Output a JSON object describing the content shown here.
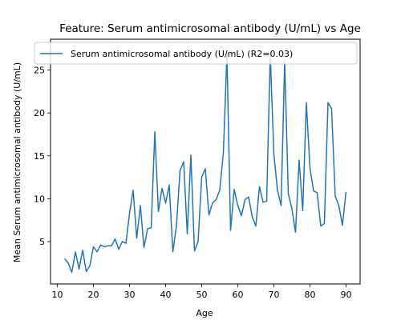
{
  "chart_data": {
    "type": "line",
    "title": "Feature: Serum antimicrosomal antibody (U/mL) vs Age",
    "xlabel": "Age",
    "ylabel": "Mean Serum antimicrosomal antibody (U/mL)",
    "xlim": [
      8.1,
      93.9
    ],
    "ylim": [
      0.05,
      28.6
    ],
    "xticks": [
      10,
      20,
      30,
      40,
      50,
      60,
      70,
      80,
      90
    ],
    "yticks": [
      5,
      10,
      15,
      20,
      25
    ],
    "grid": false,
    "legend_position": "upper left",
    "series": [
      {
        "name": "Serum antimicrosomal antibody (U/mL) (R2=0.03)",
        "color": "#1f77b4",
        "x": [
          12,
          13,
          14,
          15,
          16,
          17,
          18,
          19,
          20,
          21,
          22,
          23,
          24,
          25,
          26,
          27,
          28,
          29,
          30,
          31,
          32,
          33,
          34,
          35,
          36,
          37,
          38,
          39,
          40,
          41,
          42,
          43,
          44,
          45,
          46,
          47,
          48,
          49,
          50,
          51,
          52,
          53,
          54,
          55,
          56,
          57,
          58,
          59,
          60,
          61,
          62,
          63,
          64,
          65,
          66,
          67,
          68,
          69,
          70,
          71,
          72,
          73,
          74,
          75,
          76,
          77,
          78,
          79,
          80,
          81,
          82,
          83,
          84,
          85,
          86,
          87,
          88,
          89,
          90
        ],
        "y": [
          3.0,
          2.5,
          1.4,
          3.8,
          1.8,
          4.0,
          1.5,
          2.2,
          4.4,
          3.8,
          4.6,
          4.4,
          4.5,
          4.5,
          5.3,
          4.1,
          5.0,
          4.8,
          8.3,
          11.0,
          5.4,
          9.2,
          4.3,
          6.5,
          6.6,
          17.8,
          8.5,
          11.2,
          9.5,
          11.6,
          3.8,
          6.8,
          13.3,
          14.3,
          5.9,
          15.1,
          3.9,
          5.0,
          12.5,
          13.5,
          8.1,
          9.5,
          9.9,
          11.0,
          15.3,
          26.9,
          6.3,
          11.1,
          9.2,
          8.0,
          9.9,
          10.2,
          7.9,
          6.8,
          11.4,
          9.6,
          9.7,
          26.8,
          15.2,
          11.0,
          9.2,
          26.1,
          10.6,
          8.8,
          6.1,
          14.5,
          8.6,
          21.2,
          13.6,
          10.9,
          10.7,
          6.8,
          7.1,
          21.2,
          20.5,
          10.3,
          9.2,
          6.9,
          10.8
        ]
      }
    ]
  }
}
